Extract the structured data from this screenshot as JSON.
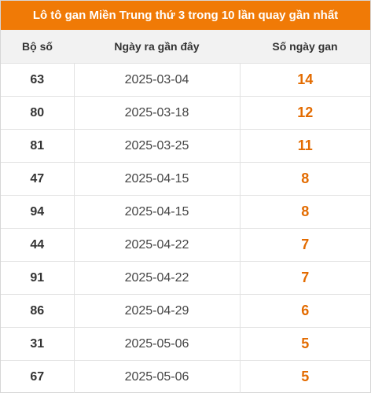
{
  "title": "Lô tô gan Miền Trung thứ 3 trong 10 lần quay gần nhất",
  "colors": {
    "header_bg": "#f07a06",
    "days_text": "#e36b00",
    "column_header_bg": "#f2f2f2"
  },
  "table": {
    "headers": [
      "Bộ số",
      "Ngày ra gần đây",
      "Số ngày gan"
    ],
    "rows": [
      {
        "number": "63",
        "date": "2025-03-04",
        "days": "14"
      },
      {
        "number": "80",
        "date": "2025-03-18",
        "days": "12"
      },
      {
        "number": "81",
        "date": "2025-03-25",
        "days": "11"
      },
      {
        "number": "47",
        "date": "2025-04-15",
        "days": "8"
      },
      {
        "number": "94",
        "date": "2025-04-15",
        "days": "8"
      },
      {
        "number": "44",
        "date": "2025-04-22",
        "days": "7"
      },
      {
        "number": "91",
        "date": "2025-04-22",
        "days": "7"
      },
      {
        "number": "86",
        "date": "2025-04-29",
        "days": "6"
      },
      {
        "number": "31",
        "date": "2025-05-06",
        "days": "5"
      },
      {
        "number": "67",
        "date": "2025-05-06",
        "days": "5"
      }
    ]
  }
}
